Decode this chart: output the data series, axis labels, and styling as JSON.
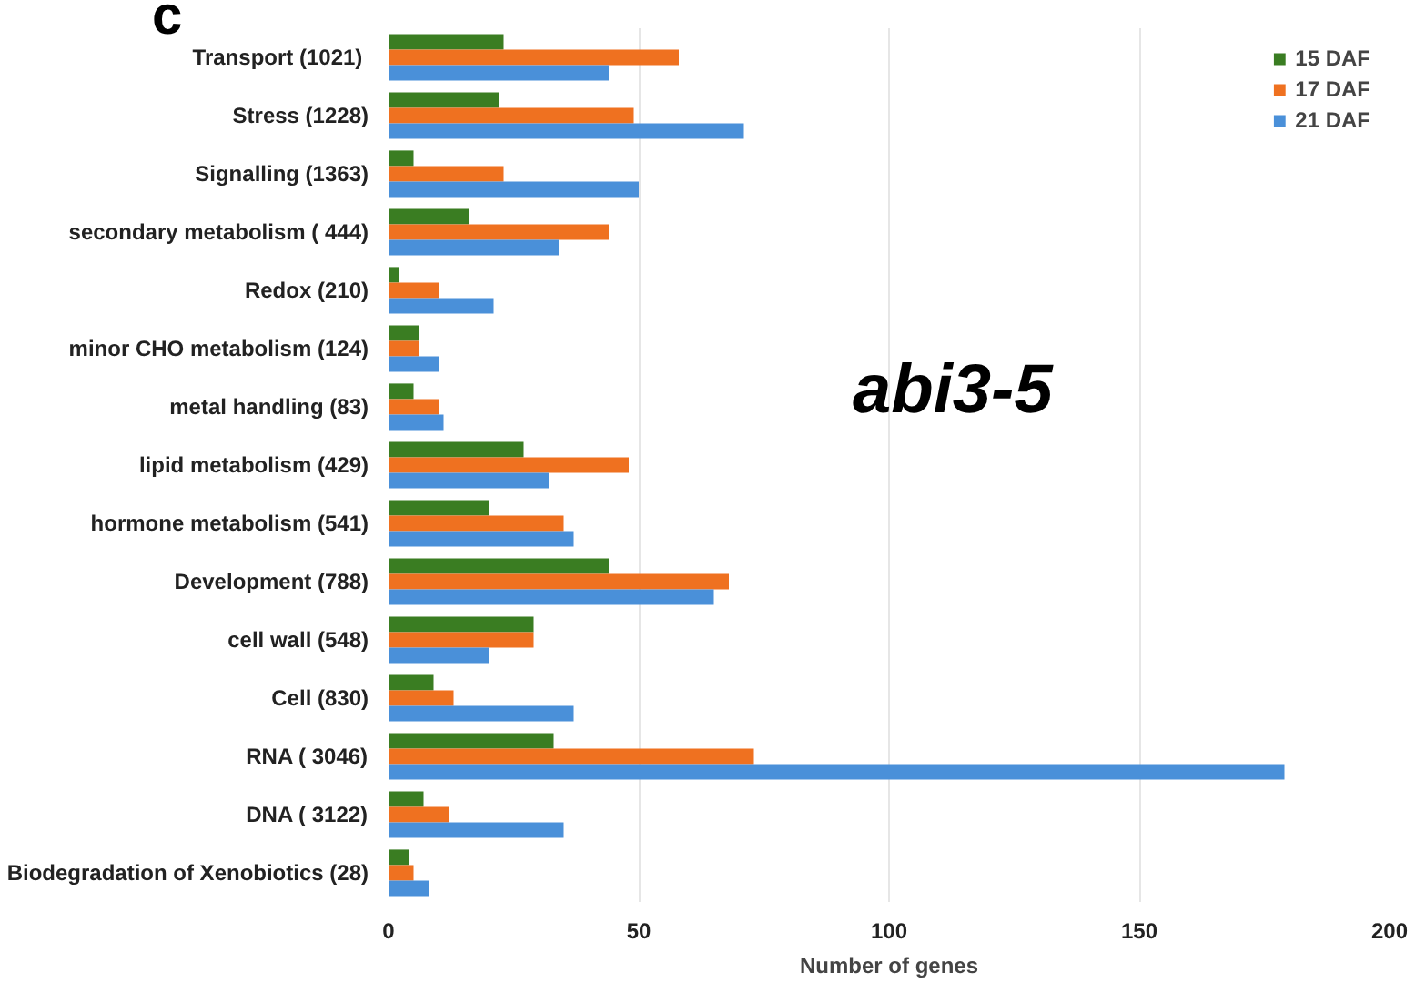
{
  "chart_data": {
    "type": "bar",
    "orientation": "horizontal",
    "xlabel": "Number of genes",
    "categories": [
      "Transport  (1021)",
      "Stress (1228)",
      "Signalling (1363)",
      "secondary metabolism ( 444)",
      "Redox (210)",
      "minor CHO metabolism (124)",
      "metal handling (83)",
      "lipid metabolism (429)",
      "hormone metabolism (541)",
      "Development (788)",
      "cell wall (548)",
      "Cell (830)",
      "RNA ( 3046)",
      "DNA ( 3122)",
      "Biodegradation of Xenobiotics (28)"
    ],
    "series": [
      {
        "name": "15 DAF",
        "color": "#3a7d22",
        "values": [
          23,
          22,
          5,
          16,
          2,
          6,
          5,
          27,
          20,
          44,
          29,
          9,
          33,
          7,
          4
        ]
      },
      {
        "name": "17 DAF",
        "color": "#ef7120",
        "values": [
          58,
          49,
          23,
          44,
          10,
          6,
          10,
          48,
          35,
          68,
          29,
          13,
          73,
          12,
          5
        ]
      },
      {
        "name": "21 DAF",
        "color": "#4a90d9",
        "values": [
          44,
          71,
          50,
          34,
          21,
          10,
          11,
          32,
          37,
          65,
          20,
          37,
          179,
          35,
          8
        ]
      }
    ],
    "xlim": [
      0,
      200
    ],
    "xticks": [
      0,
      50,
      100,
      150,
      200
    ],
    "grid": "x",
    "legend": "top right",
    "annotations": [
      "c",
      "abi3-5"
    ]
  }
}
